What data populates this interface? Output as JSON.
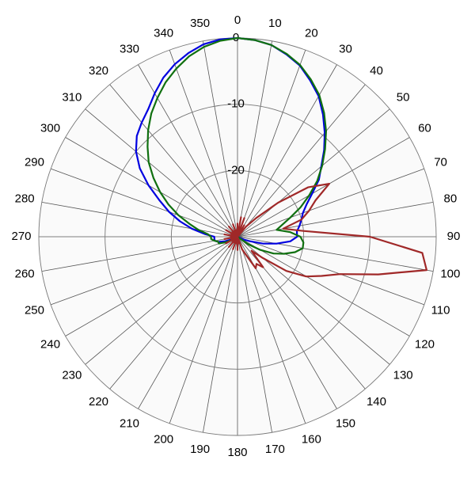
{
  "chart_data": {
    "type": "polar",
    "theta": [
      0,
      5,
      10,
      15,
      20,
      25,
      30,
      35,
      40,
      45,
      50,
      55,
      60,
      65,
      70,
      75,
      80,
      85,
      90,
      95,
      100,
      105,
      110,
      115,
      120,
      125,
      130,
      135,
      140,
      145,
      150,
      155,
      160,
      165,
      170,
      175,
      180,
      185,
      190,
      195,
      200,
      205,
      210,
      215,
      220,
      225,
      230,
      235,
      240,
      245,
      250,
      255,
      260,
      265,
      270,
      275,
      280,
      285,
      290,
      295,
      300,
      305,
      310,
      315,
      320,
      325,
      330,
      335,
      340,
      345,
      350,
      355
    ],
    "thetaticks": [
      0,
      10,
      20,
      30,
      40,
      50,
      60,
      70,
      80,
      90,
      100,
      110,
      120,
      130,
      140,
      150,
      160,
      170,
      180,
      190,
      200,
      210,
      220,
      230,
      240,
      250,
      260,
      270,
      280,
      290,
      300,
      310,
      320,
      330,
      340,
      350
    ],
    "rlim": [
      -30,
      0
    ],
    "rticks": [
      0,
      -10,
      -20
    ],
    "series": [
      {
        "color": "#0000e0",
        "values": [
          0,
          -0.2,
          -0.6,
          -1.5,
          -2.5,
          -4,
          -5.5,
          -7.5,
          -9.5,
          -11.5,
          -13.5,
          -15,
          -17,
          -18.5,
          -19.5,
          -20,
          -20.5,
          -21,
          -21,
          -22,
          -24,
          -26,
          -28,
          -29,
          -30,
          -30,
          -30,
          -30,
          -30,
          -30,
          -30,
          -30,
          -30,
          -30,
          -30,
          -30,
          -30,
          -30,
          -30,
          -30,
          -30,
          -30,
          -30,
          -30,
          -30,
          -30,
          -30,
          -30,
          -30,
          -29,
          -28,
          -27,
          -26.5,
          -26.5,
          -26.5,
          -25,
          -23,
          -21,
          -19,
          -17,
          -14.5,
          -12,
          -10,
          -8.5,
          -7.5,
          -6.5,
          -5,
          -3.5,
          -2.3,
          -1.3,
          -0.5,
          -0.1
        ]
      },
      {
        "color": "#107010",
        "values": [
          0,
          -0.2,
          -0.6,
          -1.4,
          -2.4,
          -3.8,
          -5.3,
          -7.2,
          -9.2,
          -11.3,
          -13.3,
          -15.3,
          -17.5,
          -19.5,
          -21.5,
          -23,
          -24,
          -22,
          -20.5,
          -20,
          -20,
          -21,
          -22.5,
          -24,
          -26,
          -28,
          -30,
          -30,
          -30,
          -30,
          -30,
          -30,
          -30,
          -30,
          -30,
          -30,
          -30,
          -30,
          -30,
          -30,
          -30,
          -30,
          -30,
          -30,
          -30,
          -30,
          -30,
          -30,
          -29,
          -28,
          -27,
          -27,
          -26.5,
          -26,
          -26,
          -25.5,
          -24,
          -22.5,
          -20.5,
          -18.5,
          -16.5,
          -14.5,
          -12.5,
          -10.8,
          -9,
          -7.3,
          -5.8,
          -4.3,
          -3,
          -1.8,
          -0.9,
          -0.3
        ]
      },
      {
        "color": "#a02828",
        "values": [
          -28,
          -30,
          -27,
          -30,
          -27,
          -30,
          -28,
          -30,
          -28,
          -26,
          -22,
          -17,
          -14,
          -17,
          -18.5,
          -20,
          -23,
          -20,
          -10,
          -2,
          -1,
          -8,
          -13.5,
          -16,
          -18,
          -21,
          -25,
          -27,
          -24,
          -25,
          -24.5,
          -27,
          -28,
          -30,
          -29,
          -30,
          -28,
          -30,
          -29,
          -30,
          -28,
          -30,
          -29,
          -30,
          -28,
          -30,
          -29,
          -30,
          -28,
          -30,
          -29,
          -30,
          -28,
          -30,
          -29,
          -30,
          -28,
          -30,
          -29,
          -30,
          -28,
          -30,
          -29,
          -30,
          -28,
          -30,
          -29,
          -30,
          -28,
          -30,
          -29,
          -30
        ]
      }
    ]
  }
}
